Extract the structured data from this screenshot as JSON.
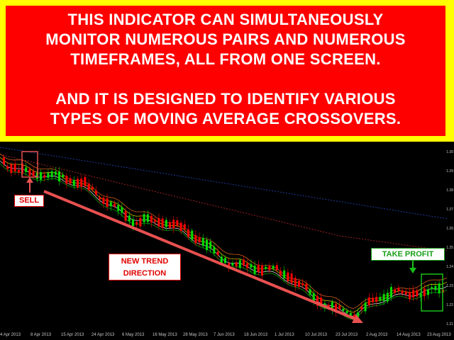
{
  "banner": {
    "line1": "THIS INDICATOR CAN SIMULTANEOUSLY",
    "line2": "MONITOR NUMEROUS PAIRS AND NUMEROUS",
    "line3": "TIMEFRAMES, ALL FROM ONE SCREEN.",
    "line4": "AND IT IS DESIGNED TO IDENTIFY VARIOUS",
    "line5_a": "TYPES OF ",
    "line5_b": "MOVING AVERAGE CROSSOVERS."
  },
  "labels": {
    "sell": "SELL",
    "trend_1": "NEW TREND",
    "trend_2": "DIRECTION",
    "take_profit": "TAKE PROFIT"
  },
  "dates": [
    "4 Apr 2013",
    "8 Apr 2013",
    "15 Apr 2013",
    "24 Apr 2013",
    "6 May 2013",
    "16 May 2013",
    "28 May 2013",
    "7 Jun 2013",
    "18 Jun 2013",
    "1 Jul 2013",
    "10 Jul 2013",
    "23 Jul 2013",
    "2 Aug 2013",
    "14 Aug 2013",
    "23 Aug 2013"
  ],
  "prices": [
    "1.30",
    "1.29",
    "1.28",
    "1.27",
    "1.26",
    "1.25",
    "1.24",
    "1.23",
    "1.22",
    "1.21"
  ],
  "colors": {
    "banner_border": "#ffff00",
    "banner_bg": "#ff0000",
    "bull": "#00dd00",
    "bear": "#ff0000",
    "arrow": "#e85050",
    "ma_blue": "#1e3ca0",
    "ma_red": "#a02020",
    "ma_orange": "#d06020",
    "ma_yellow": "#d0c000",
    "ma_white": "#d0d0d0",
    "ma_green": "#00a000"
  }
}
